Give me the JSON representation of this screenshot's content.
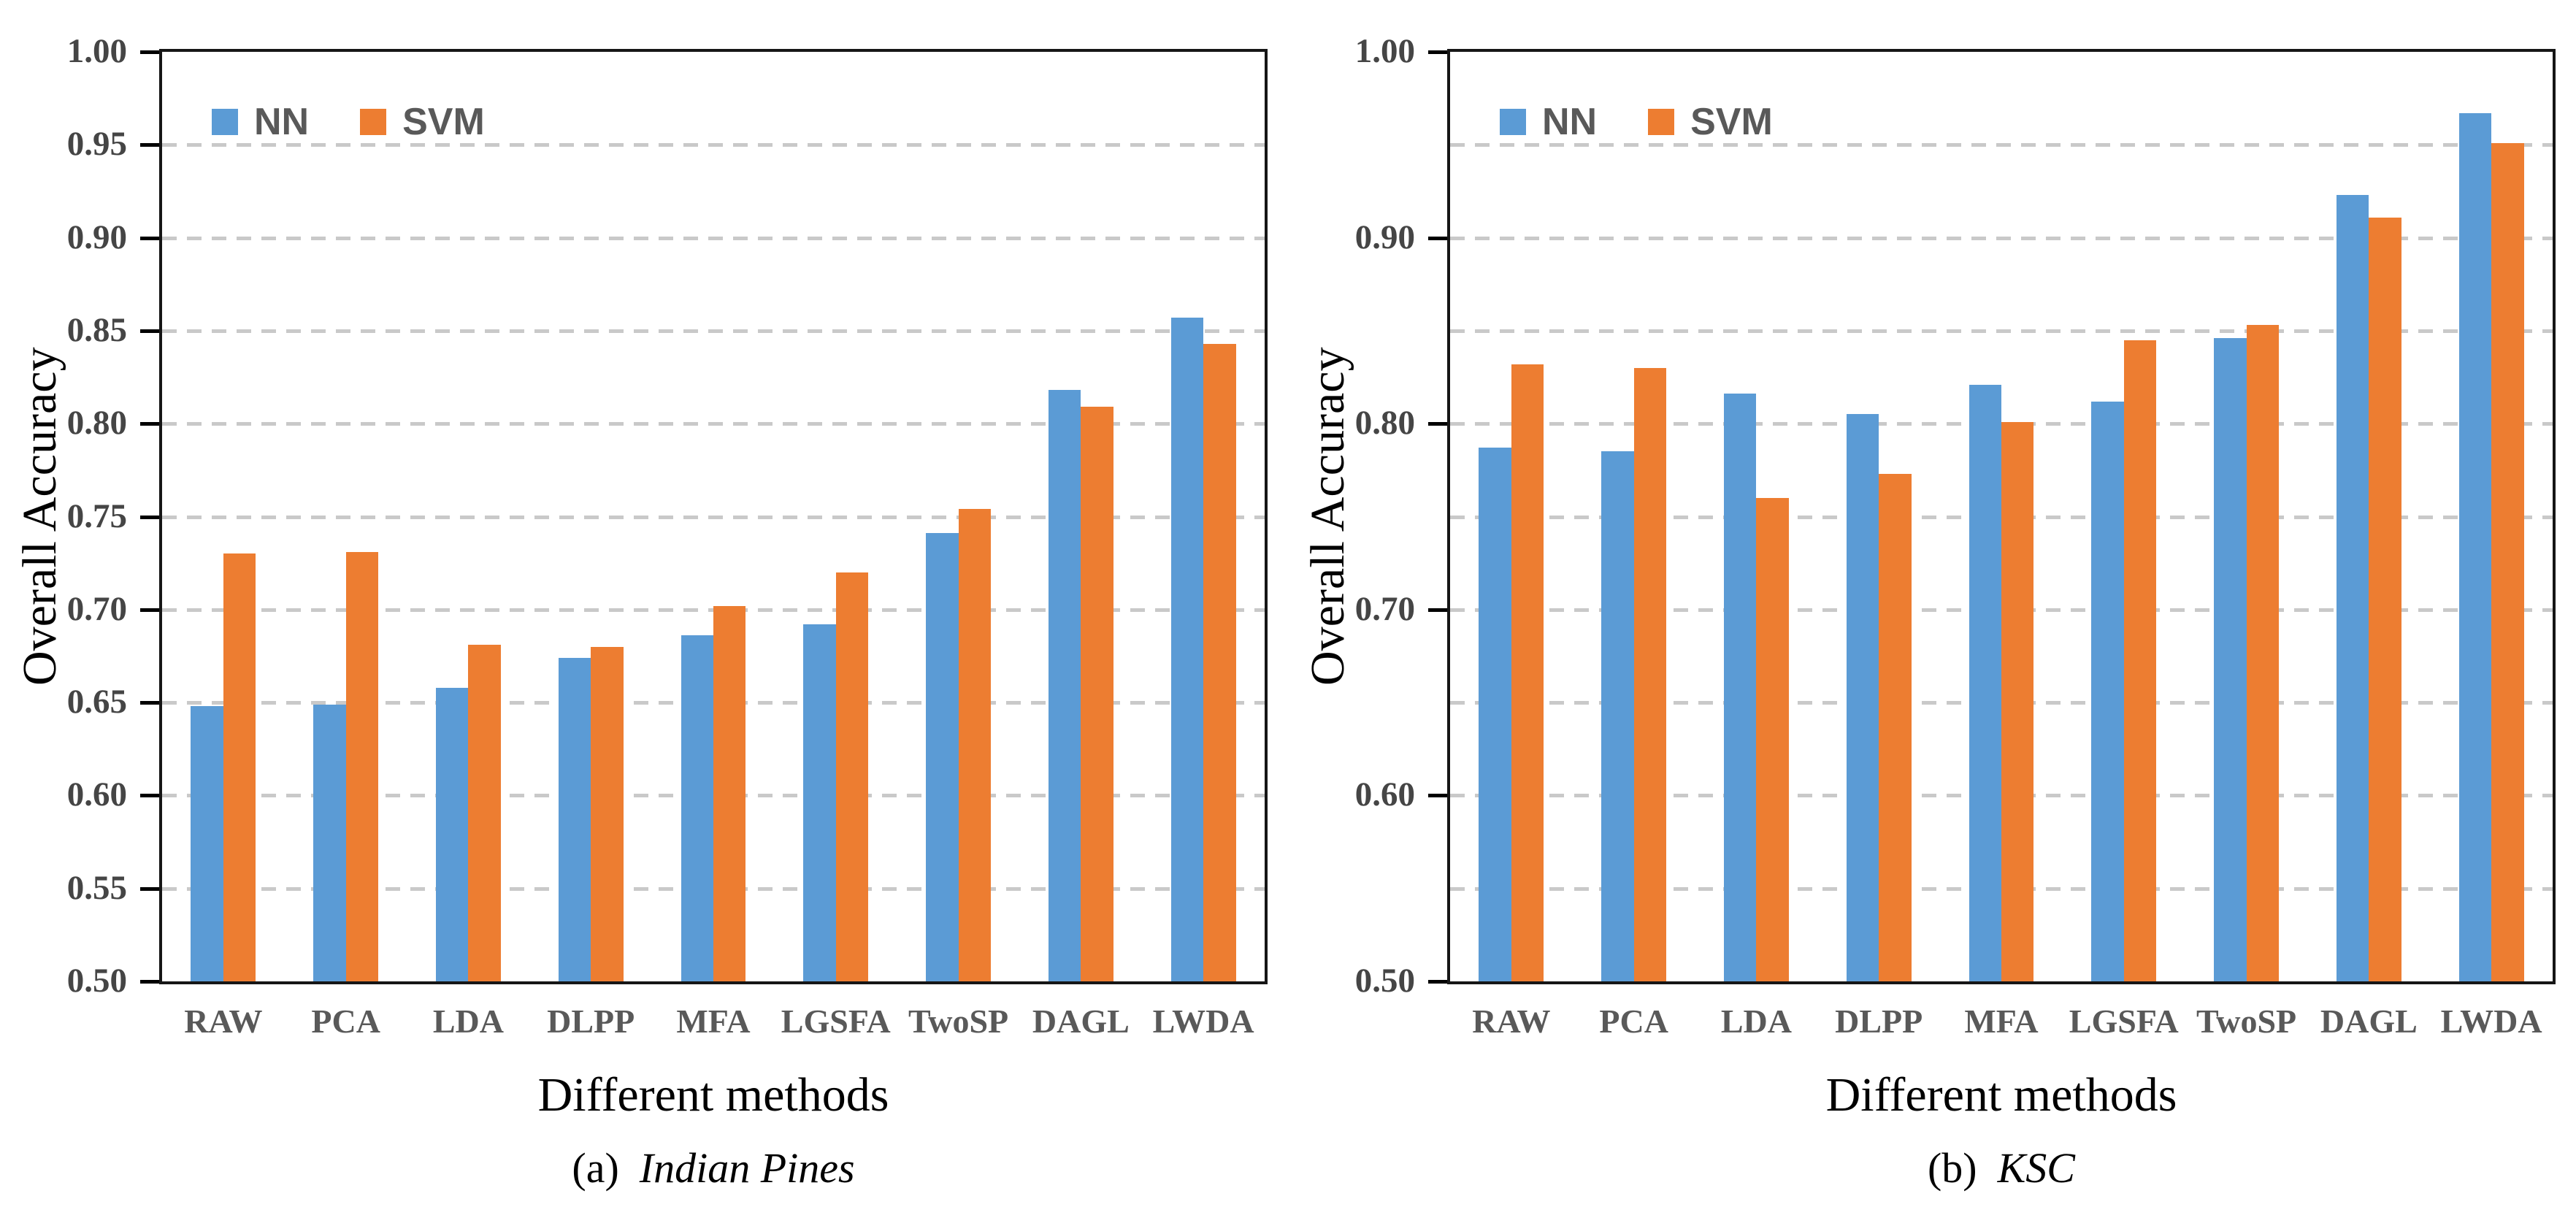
{
  "chart_data": [
    {
      "type": "bar",
      "caption": {
        "index_label": "(a)",
        "name": "Indian Pines"
      },
      "xlabel": "Different methods",
      "ylabel": "Overall Accuracy",
      "categories": [
        "RAW",
        "PCA",
        "LDA",
        "DLPP",
        "MFA",
        "LGSFA",
        "TwoSP",
        "DAGL",
        "LWDA"
      ],
      "series": [
        {
          "name": "NN",
          "color": "#5B9BD5",
          "values": [
            0.648,
            0.649,
            0.658,
            0.674,
            0.686,
            0.692,
            0.741,
            0.818,
            0.857
          ]
        },
        {
          "name": "SVM",
          "color": "#ED7D31",
          "values": [
            0.73,
            0.731,
            0.681,
            0.68,
            0.702,
            0.72,
            0.754,
            0.809,
            0.843
          ]
        }
      ],
      "ylim": [
        0.5,
        1.0
      ],
      "grid": true,
      "grid_step": 0.05,
      "label_step": 0.05,
      "tick_label_format": "0.00",
      "legend_position": "top-left-inside"
    },
    {
      "type": "bar",
      "caption": {
        "index_label": "(b)",
        "name": "KSC"
      },
      "xlabel": "Different methods",
      "ylabel": "Overall Accuracy",
      "categories": [
        "RAW",
        "PCA",
        "LDA",
        "DLPP",
        "MFA",
        "LGSFA",
        "TwoSP",
        "DAGL",
        "LWDA"
      ],
      "series": [
        {
          "name": "NN",
          "color": "#5B9BD5",
          "values": [
            0.787,
            0.785,
            0.816,
            0.805,
            0.821,
            0.812,
            0.846,
            0.923,
            0.967
          ]
        },
        {
          "name": "SVM",
          "color": "#ED7D31",
          "values": [
            0.832,
            0.83,
            0.76,
            0.773,
            0.801,
            0.845,
            0.853,
            0.911,
            0.951
          ]
        }
      ],
      "ylim": [
        0.5,
        1.0
      ],
      "grid": true,
      "grid_step": 0.05,
      "label_step": 0.1,
      "tick_label_format": "0.00",
      "legend_position": "top-left-inside"
    }
  ]
}
